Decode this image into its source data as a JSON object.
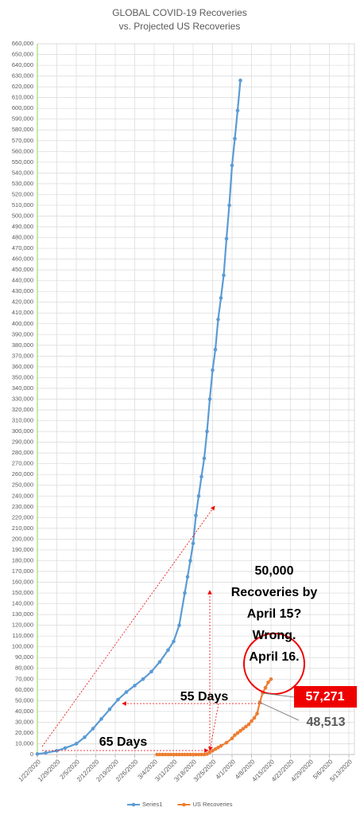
{
  "chart_data": {
    "type": "line",
    "title": "GLOBAL COVID-19 Recoveries",
    "subtitle": "vs. Projected US Recoveries",
    "xlim": [
      "1/22/2020",
      "5/15/2020"
    ],
    "xticks": [
      "1/22/2020",
      "1/29/2020",
      "2/5/2020",
      "2/12/2020",
      "2/19/2020",
      "2/26/2020",
      "3/4/2020",
      "3/11/2020",
      "3/18/2020",
      "3/25/2020",
      "4/1/2020",
      "4/8/2020",
      "4/15/2020",
      "4/22/2020",
      "4/29/2020",
      "5/6/2020",
      "5/13/2020"
    ],
    "ylim": [
      0,
      660000
    ],
    "yticks": [
      0,
      {
        "value": 10000,
        "label": "10,000"
      },
      {
        "value": 20000,
        "label": "20,000"
      },
      {
        "value": 30000,
        "label": "30,000"
      },
      {
        "value": 40000,
        "label": "40,000"
      },
      {
        "value": 50000,
        "label": "50,000"
      },
      {
        "value": 60000,
        "label": "60,000"
      },
      {
        "value": 70000,
        "label": "70,000"
      },
      {
        "value": 80000,
        "label": "80,000"
      },
      {
        "value": 90000,
        "label": "90,000"
      },
      {
        "value": 100000,
        "label": "100,000"
      },
      {
        "value": 110000,
        "label": "110,000"
      },
      {
        "value": 120000,
        "label": "120,000"
      },
      {
        "value": 130000,
        "label": "130,000"
      },
      {
        "value": 140000,
        "label": "140,000"
      },
      {
        "value": 150000,
        "label": "150,000"
      },
      {
        "value": 160000,
        "label": "160,000"
      },
      {
        "value": 170000,
        "label": "170,000"
      },
      {
        "value": 180000,
        "label": "180,000"
      },
      {
        "value": 190000,
        "label": "190,000"
      },
      {
        "value": 200000,
        "label": "200,000"
      },
      {
        "value": 210000,
        "label": "210,000"
      },
      {
        "value": 220000,
        "label": "220,000"
      },
      {
        "value": 230000,
        "label": "230,000"
      },
      {
        "value": 240000,
        "label": "240,000"
      },
      {
        "value": 250000,
        "label": "250,000"
      },
      {
        "value": 260000,
        "label": "260,000"
      },
      {
        "value": 270000,
        "label": "270,000"
      },
      {
        "value": 280000,
        "label": "280,000"
      },
      {
        "value": 290000,
        "label": "290,000"
      },
      {
        "value": 300000,
        "label": "300,000"
      },
      {
        "value": 310000,
        "label": "310,000"
      },
      {
        "value": 320000,
        "label": "320,000"
      },
      {
        "value": 330000,
        "label": "330,000"
      },
      {
        "value": 340000,
        "label": "340,000"
      },
      {
        "value": 350000,
        "label": "350,000"
      },
      {
        "value": 360000,
        "label": "360,000"
      },
      {
        "value": 370000,
        "label": "370,000"
      },
      {
        "value": 380000,
        "label": "380,000"
      },
      {
        "value": 390000,
        "label": "390,000"
      },
      {
        "value": 400000,
        "label": "400,000"
      },
      {
        "value": 410000,
        "label": "410,000"
      },
      {
        "value": 420000,
        "label": "420,000"
      },
      {
        "value": 430000,
        "label": "430,000"
      },
      {
        "value": 440000,
        "label": "440,000"
      },
      {
        "value": 450000,
        "label": "450,000"
      },
      {
        "value": 460000,
        "label": "460,000"
      },
      {
        "value": 470000,
        "label": "470,000"
      },
      {
        "value": 480000,
        "label": "480,000"
      },
      {
        "value": 490000,
        "label": "490,000"
      },
      {
        "value": 500000,
        "label": "500,000"
      },
      {
        "value": 510000,
        "label": "510,000"
      },
      {
        "value": 520000,
        "label": "520,000"
      },
      {
        "value": 530000,
        "label": "530,000"
      },
      {
        "value": 540000,
        "label": "540,000"
      },
      {
        "value": 550000,
        "label": "550,000"
      },
      {
        "value": 560000,
        "label": "560,000"
      },
      {
        "value": 570000,
        "label": "570,000"
      },
      {
        "value": 580000,
        "label": "580,000"
      },
      {
        "value": 590000,
        "label": "590,000"
      },
      {
        "value": 600000,
        "label": "600,000"
      },
      {
        "value": 610000,
        "label": "610,000"
      },
      {
        "value": 620000,
        "label": "620,000"
      },
      {
        "value": 630000,
        "label": "630,000"
      },
      {
        "value": 640000,
        "label": "640,000"
      },
      {
        "value": 650000,
        "label": "650,000"
      },
      {
        "value": 660000,
        "label": "660,000"
      }
    ],
    "grid": true,
    "legend": "bottom",
    "series": [
      {
        "name": "Series1",
        "color": "#5b9bd5",
        "x": [
          "1/22/2020",
          "1/25/2020",
          "1/29/2020",
          "2/1/2020",
          "2/5/2020",
          "2/8/2020",
          "2/11/2020",
          "2/14/2020",
          "2/17/2020",
          "2/20/2020",
          "2/23/2020",
          "2/26/2020",
          "2/29/2020",
          "3/3/2020",
          "3/6/2020",
          "3/9/2020",
          "3/11/2020",
          "3/13/2020",
          "3/15/2020",
          "3/16/2020",
          "3/17/2020",
          "3/18/2020",
          "3/19/2020",
          "3/20/2020",
          "3/21/2020",
          "3/22/2020",
          "3/23/2020",
          "3/24/2020",
          "3/25/2020",
          "3/26/2020",
          "3/27/2020",
          "3/28/2020",
          "3/29/2020",
          "3/30/2020",
          "3/31/2020",
          "4/1/2020",
          "4/2/2020",
          "4/3/2020",
          "4/4/2020"
        ],
        "values": [
          500,
          1500,
          3500,
          6000,
          10000,
          16000,
          24000,
          33000,
          42000,
          51000,
          58000,
          64000,
          70000,
          77000,
          86000,
          97000,
          105000,
          120000,
          150000,
          165000,
          180000,
          196000,
          222000,
          240000,
          258000,
          275000,
          300000,
          330000,
          357000,
          376000,
          404000,
          424000,
          445000,
          479000,
          510000,
          547000,
          572000,
          598000,
          626000
        ]
      },
      {
        "name": "US Recoveries",
        "color": "#ed7d31",
        "x": [
          "3/5/2020",
          "3/6/2020",
          "3/7/2020",
          "3/8/2020",
          "3/9/2020",
          "3/10/2020",
          "3/11/2020",
          "3/12/2020",
          "3/13/2020",
          "3/14/2020",
          "3/15/2020",
          "3/16/2020",
          "3/17/2020",
          "3/18/2020",
          "3/19/2020",
          "3/20/2020",
          "3/21/2020",
          "3/22/2020",
          "3/23/2020",
          "3/24/2020",
          "3/25/2020",
          "3/26/2020",
          "3/27/2020",
          "3/28/2020",
          "3/30/2020",
          "4/1/2020",
          "4/2/2020",
          "4/3/2020",
          "4/4/2020",
          "4/5/2020",
          "4/6/2020",
          "4/7/2020",
          "4/8/2020",
          "4/9/2020",
          "4/10/2020",
          "4/11/2020",
          "4/12/2020",
          "4/13/2020",
          "4/14/2020",
          "4/15/2020"
        ],
        "values": [
          0,
          0,
          0,
          0,
          0,
          0,
          0,
          0,
          0,
          0,
          0,
          0,
          0,
          0,
          0,
          0,
          0,
          0,
          500,
          2000,
          3500,
          5000,
          6500,
          8000,
          11000,
          15000,
          18000,
          20000,
          22000,
          24000,
          26000,
          28000,
          31000,
          34000,
          38000,
          48513,
          57271,
          62000,
          67000,
          70000
        ]
      }
    ],
    "annotations": [
      "50,000",
      "Recoveries by",
      "April 15?",
      "Wrong.",
      "April 16.",
      "55 Days",
      "65 Days",
      "57,271",
      "48,513"
    ]
  }
}
